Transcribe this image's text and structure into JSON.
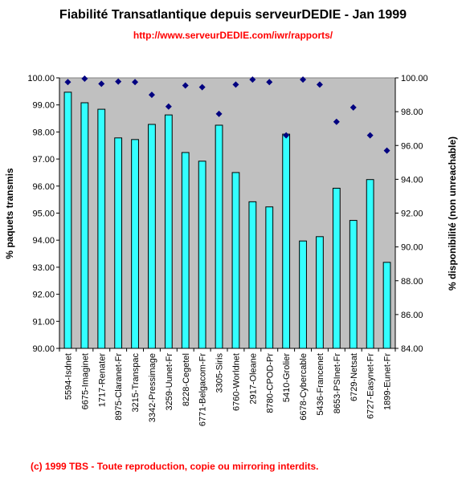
{
  "header": {
    "title": "Fiabilité Transatlantique depuis serveurDEDIE - Jan 1999",
    "url": "http://www.serveurDEDIE.com/iwr/rapports/"
  },
  "footer": {
    "copyright": "(c) 1999 TBS - Toute reproduction, copie ou mirroring interdits."
  },
  "chart_data": {
    "type": "bar",
    "ylabel": "% paquets transmis",
    "y2label": "% disponibilité (non unreachable)",
    "ylim": [
      90,
      100
    ],
    "y2lim": [
      84,
      100
    ],
    "yticks": [
      "90.00",
      "91.00",
      "92.00",
      "93.00",
      "94.00",
      "95.00",
      "96.00",
      "97.00",
      "98.00",
      "99.00",
      "100.00"
    ],
    "y2ticks": [
      "84.00",
      "86.00",
      "88.00",
      "90.00",
      "92.00",
      "94.00",
      "96.00",
      "98.00",
      "100.00"
    ],
    "grid": false,
    "legend": "none",
    "categories": [
      "5594-Isdnet",
      "6675-Imaginet",
      "1717-Renater",
      "8975-Claranet-Fr",
      "3215-Transpac",
      "3342-Pressimage",
      "3259-Uunet-Fr",
      "8228-Cegetel",
      "6771-Belgacom-Fr",
      "3305-Siris",
      "6760-Worldnet",
      "2917-Oleane",
      "8780-CPOD-Pr",
      "5410-Grolier",
      "6678-Cybercable",
      "5436-Francenet",
      "8653-PSInet-Fr",
      "6729-Netsat",
      "6727-Easynet-Fr",
      "1899-Eunet-Fr"
    ],
    "series": [
      {
        "type": "bar",
        "axis": "left",
        "values": [
          99.47,
          99.08,
          98.84,
          97.78,
          97.72,
          98.28,
          98.63,
          97.24,
          96.92,
          98.25,
          96.5,
          95.42,
          95.23,
          97.92,
          93.97,
          94.13,
          95.92,
          94.73,
          96.24,
          93.18
        ]
      },
      {
        "type": "scatter",
        "axis": "right",
        "values": [
          99.75,
          99.95,
          99.65,
          99.78,
          99.75,
          99.0,
          98.3,
          99.55,
          99.45,
          97.87,
          99.6,
          99.9,
          99.75,
          96.6,
          99.9,
          99.6,
          97.4,
          98.25,
          96.6,
          95.7
        ]
      }
    ],
    "colors": {
      "bar": "#33ffff",
      "bar_edge": "#000000",
      "marker": "#000080",
      "plot_bg": "#c0c0c0"
    }
  }
}
